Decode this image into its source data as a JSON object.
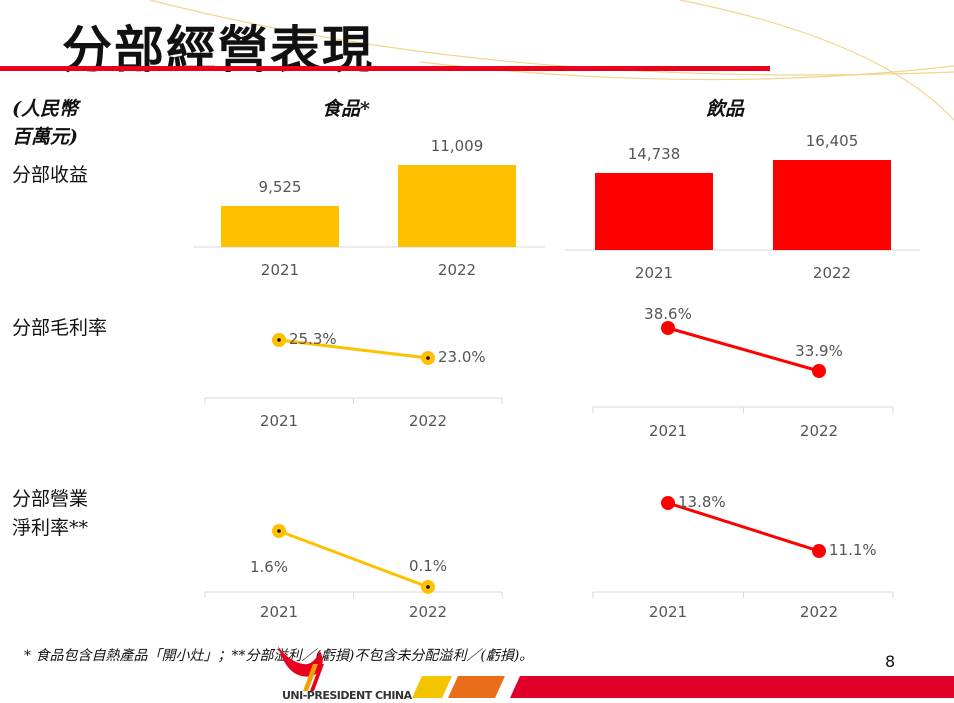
{
  "title": "分部經營表現",
  "unit_label_line1": "(人民幣",
  "unit_label_line2": "百萬元)",
  "segments": {
    "food": "食品*",
    "beverage": "飲品"
  },
  "row_labels": {
    "revenue": "分部收益",
    "gross_margin": "分部毛利率",
    "net_margin_line1": "分部營業",
    "net_margin_line2": "淨利率**"
  },
  "colors": {
    "food": "#ffc000",
    "beverage": "#ff0000",
    "accent": "#e8001c"
  },
  "chart_data": [
    {
      "id": "food-revenue",
      "type": "bar",
      "categories": [
        "2021",
        "2022"
      ],
      "values": [
        9525,
        11009
      ],
      "labels": [
        "9,525",
        "11,009"
      ]
    },
    {
      "id": "beverage-revenue",
      "type": "bar",
      "categories": [
        "2021",
        "2022"
      ],
      "values": [
        14738,
        16405
      ],
      "labels": [
        "14,738",
        "16,405"
      ]
    },
    {
      "id": "food-gross-margin",
      "type": "line",
      "categories": [
        "2021",
        "2022"
      ],
      "values": [
        25.3,
        23.0
      ],
      "labels": [
        "25.3%",
        "23.0%"
      ]
    },
    {
      "id": "beverage-gross-margin",
      "type": "line",
      "categories": [
        "2021",
        "2022"
      ],
      "values": [
        38.6,
        33.9
      ],
      "labels": [
        "38.6%",
        "33.9%"
      ]
    },
    {
      "id": "food-net-margin",
      "type": "line",
      "categories": [
        "2021",
        "2022"
      ],
      "values": [
        1.6,
        0.1
      ],
      "labels": [
        "1.6%",
        "0.1%"
      ]
    },
    {
      "id": "beverage-net-margin",
      "type": "line",
      "categories": [
        "2021",
        "2022"
      ],
      "values": [
        13.8,
        11.1
      ],
      "labels": [
        "13.8%",
        "11.1%"
      ]
    }
  ],
  "footnote": "* 食品包含自熱產品「開小灶」；**分部溢利／(虧損)不包含未分配溢利／(虧損)。",
  "page_number": "8",
  "logo_text": "UNI-PRESIDENT CHINA"
}
